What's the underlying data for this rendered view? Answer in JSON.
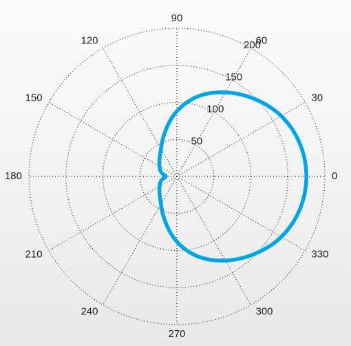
{
  "chart_data": {
    "type": "line",
    "coordinate_system": "polar",
    "angle_unit": "degrees",
    "angular_ticks": [
      "0",
      "30",
      "60",
      "90",
      "120",
      "150",
      "180",
      "210",
      "240",
      "270",
      "300",
      "330"
    ],
    "angular_tick_values": [
      0,
      30,
      60,
      90,
      120,
      150,
      180,
      210,
      240,
      270,
      300,
      330
    ],
    "radial_ticks": [
      "50",
      "100",
      "150",
      "200"
    ],
    "radial_tick_values": [
      50,
      100,
      150,
      200
    ],
    "rlim": [
      0,
      200
    ],
    "radial_label_angle": 60,
    "grid": true,
    "legend": "none",
    "title": "",
    "series": [
      {
        "color": "#00a6e6",
        "theta": [
          0,
          15,
          30,
          45,
          60,
          75,
          90,
          105,
          120,
          135,
          150,
          165,
          180,
          195,
          210,
          225,
          240,
          255,
          270,
          285,
          300,
          315,
          330,
          345,
          360
        ],
        "r": [
          175,
          172,
          163,
          148,
          131,
          112,
          88,
          62,
          43,
          33,
          27,
          22,
          15,
          22,
          27,
          33,
          43,
          62,
          88,
          112,
          131,
          148,
          163,
          172,
          175
        ]
      }
    ]
  }
}
